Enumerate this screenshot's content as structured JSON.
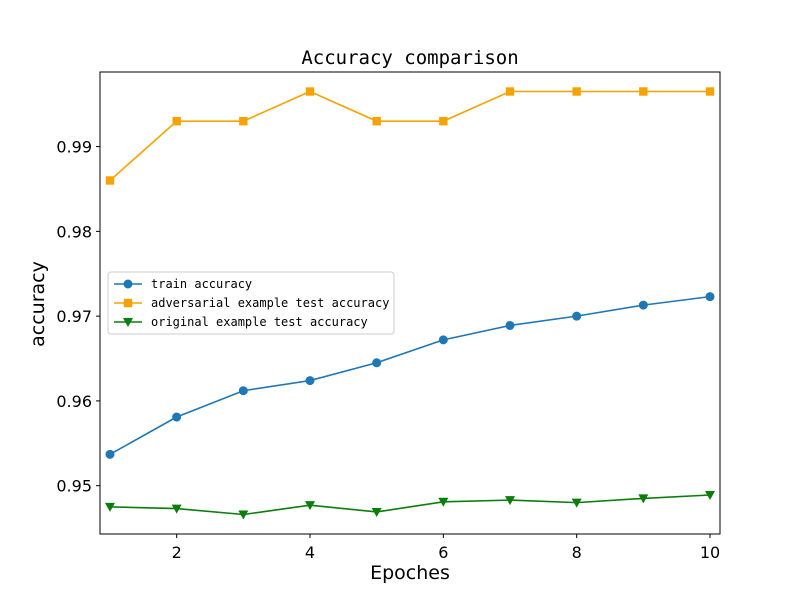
{
  "chart_data": {
    "type": "line",
    "title": "Accuracy comparison",
    "xlabel": "Epoches",
    "ylabel": "accuracy",
    "xlim": [
      0.85,
      10.15
    ],
    "ylim": [
      0.9443,
      0.9988
    ],
    "xticks": [
      2,
      4,
      6,
      8,
      10
    ],
    "xtick_labels": [
      "2",
      "4",
      "6",
      "8",
      "10"
    ],
    "yticks": [
      0.95,
      0.96,
      0.97,
      0.98,
      0.99
    ],
    "ytick_labels": [
      "0.95",
      "0.96",
      "0.97",
      "0.98",
      "0.99"
    ],
    "grid": false,
    "legend_position": "center-left",
    "x": [
      1,
      2,
      3,
      4,
      5,
      6,
      7,
      8,
      9,
      10
    ],
    "series": [
      {
        "name": "train accuracy",
        "color": "#1f77b4",
        "marker": "circle",
        "values": [
          0.9537,
          0.9581,
          0.9612,
          0.9624,
          0.9645,
          0.9672,
          0.9689,
          0.97,
          0.9713,
          0.9723
        ]
      },
      {
        "name": "adversarial example test accuracy",
        "color": "#f5a300",
        "marker": "square",
        "values": [
          0.986,
          0.993,
          0.993,
          0.9965,
          0.993,
          0.993,
          0.9965,
          0.9965,
          0.9965,
          0.9965
        ]
      },
      {
        "name": "original example test accuracy",
        "color": "#0a7d0a",
        "marker": "triangle-down",
        "values": [
          0.9475,
          0.9473,
          0.9466,
          0.9477,
          0.9469,
          0.9481,
          0.9483,
          0.948,
          0.9485,
          0.9489
        ]
      }
    ]
  }
}
